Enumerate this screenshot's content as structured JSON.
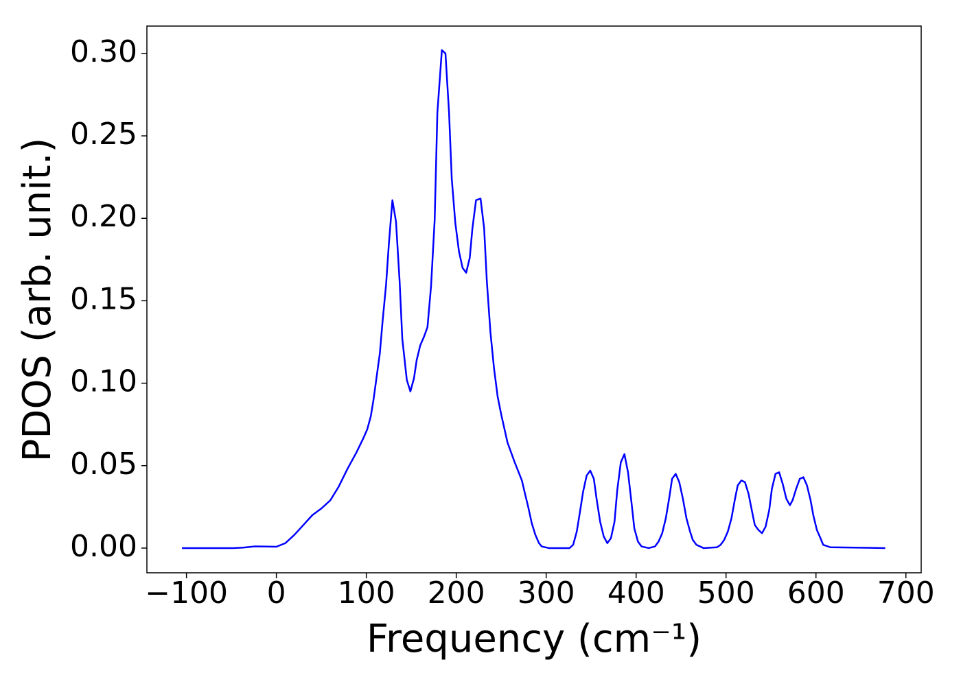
{
  "chart_data": {
    "type": "line",
    "x_label": "Frequency (cm⁻¹)",
    "y_label": "PDOS (arb. unit.)",
    "xlim": [
      -144,
      717
    ],
    "ylim": [
      -0.015,
      0.3166
    ],
    "xticks": [
      {
        "value": -100,
        "label": "−100"
      },
      0,
      100,
      200,
      300,
      400,
      500,
      600,
      700
    ],
    "yticks": [
      {
        "value": 0,
        "label": "0.00"
      },
      0.05,
      {
        "value": 0.1,
        "label": "0.10"
      },
      0.15,
      {
        "value": 0.2,
        "label": "0.20"
      },
      0.25,
      {
        "value": 0.3,
        "label": "0.30"
      }
    ],
    "grid": false,
    "series": [
      {
        "color": "#0000ff",
        "x": [
          -105,
          -48,
          -37,
          -24,
          -10,
          0,
          10,
          20,
          30,
          40,
          50,
          60,
          69,
          79,
          89,
          97,
          101,
          105,
          108,
          111,
          115,
          118,
          122,
          125,
          129,
          133,
          137,
          140,
          145,
          149,
          153,
          156,
          160,
          164,
          168,
          172,
          176,
          179,
          184,
          188,
          192,
          195,
          199,
          203,
          207,
          211,
          215,
          218,
          222,
          227,
          231,
          234,
          238,
          242,
          246,
          250,
          257,
          265,
          273,
          276,
          280,
          284,
          288,
          292,
          295,
          303,
          326,
          330,
          334,
          337,
          341,
          345,
          349,
          353,
          356,
          360,
          364,
          368,
          372,
          376,
          379,
          383,
          387,
          391,
          395,
          398,
          402,
          406,
          414,
          421,
          425,
          429,
          433,
          437,
          440,
          444,
          448,
          452,
          456,
          460,
          463,
          467,
          475,
          490,
          494,
          498,
          502,
          506,
          510,
          513,
          517,
          521,
          525,
          529,
          532,
          536,
          540,
          544,
          548,
          551,
          555,
          559,
          563,
          567,
          571,
          574,
          578,
          582,
          586,
          590,
          594,
          597,
          601,
          605,
          608,
          616,
          677
        ],
        "values": [
          0,
          0,
          0.0003,
          0.001,
          0.0009,
          0.0008,
          0.003,
          0.008,
          0.014,
          0.02,
          0.024,
          0.029,
          0.037,
          0.048,
          0.058,
          0.067,
          0.072,
          0.08,
          0.09,
          0.102,
          0.118,
          0.137,
          0.16,
          0.184,
          0.211,
          0.198,
          0.162,
          0.127,
          0.102,
          0.095,
          0.103,
          0.114,
          0.123,
          0.128,
          0.134,
          0.159,
          0.199,
          0.264,
          0.302,
          0.3,
          0.264,
          0.224,
          0.197,
          0.18,
          0.17,
          0.167,
          0.176,
          0.194,
          0.211,
          0.212,
          0.194,
          0.162,
          0.131,
          0.109,
          0.092,
          0.081,
          0.064,
          0.052,
          0.041,
          0.034,
          0.025,
          0.015,
          0.008,
          0.003,
          0.001,
          0,
          0,
          0.002,
          0.01,
          0.02,
          0.034,
          0.044,
          0.047,
          0.042,
          0.03,
          0.016,
          0.007,
          0.003,
          0.006,
          0.016,
          0.035,
          0.052,
          0.057,
          0.046,
          0.027,
          0.012,
          0.004,
          0.001,
          0,
          0.001,
          0.004,
          0.009,
          0.018,
          0.031,
          0.042,
          0.045,
          0.04,
          0.03,
          0.018,
          0.01,
          0.005,
          0.002,
          0,
          0.0005,
          0.002,
          0.005,
          0.01,
          0.018,
          0.03,
          0.038,
          0.041,
          0.04,
          0.033,
          0.022,
          0.014,
          0.011,
          0.009,
          0.013,
          0.023,
          0.036,
          0.045,
          0.046,
          0.039,
          0.03,
          0.026,
          0.029,
          0.036,
          0.042,
          0.043,
          0.038,
          0.029,
          0.02,
          0.011,
          0.006,
          0.002,
          0.0005,
          0
        ]
      }
    ]
  }
}
